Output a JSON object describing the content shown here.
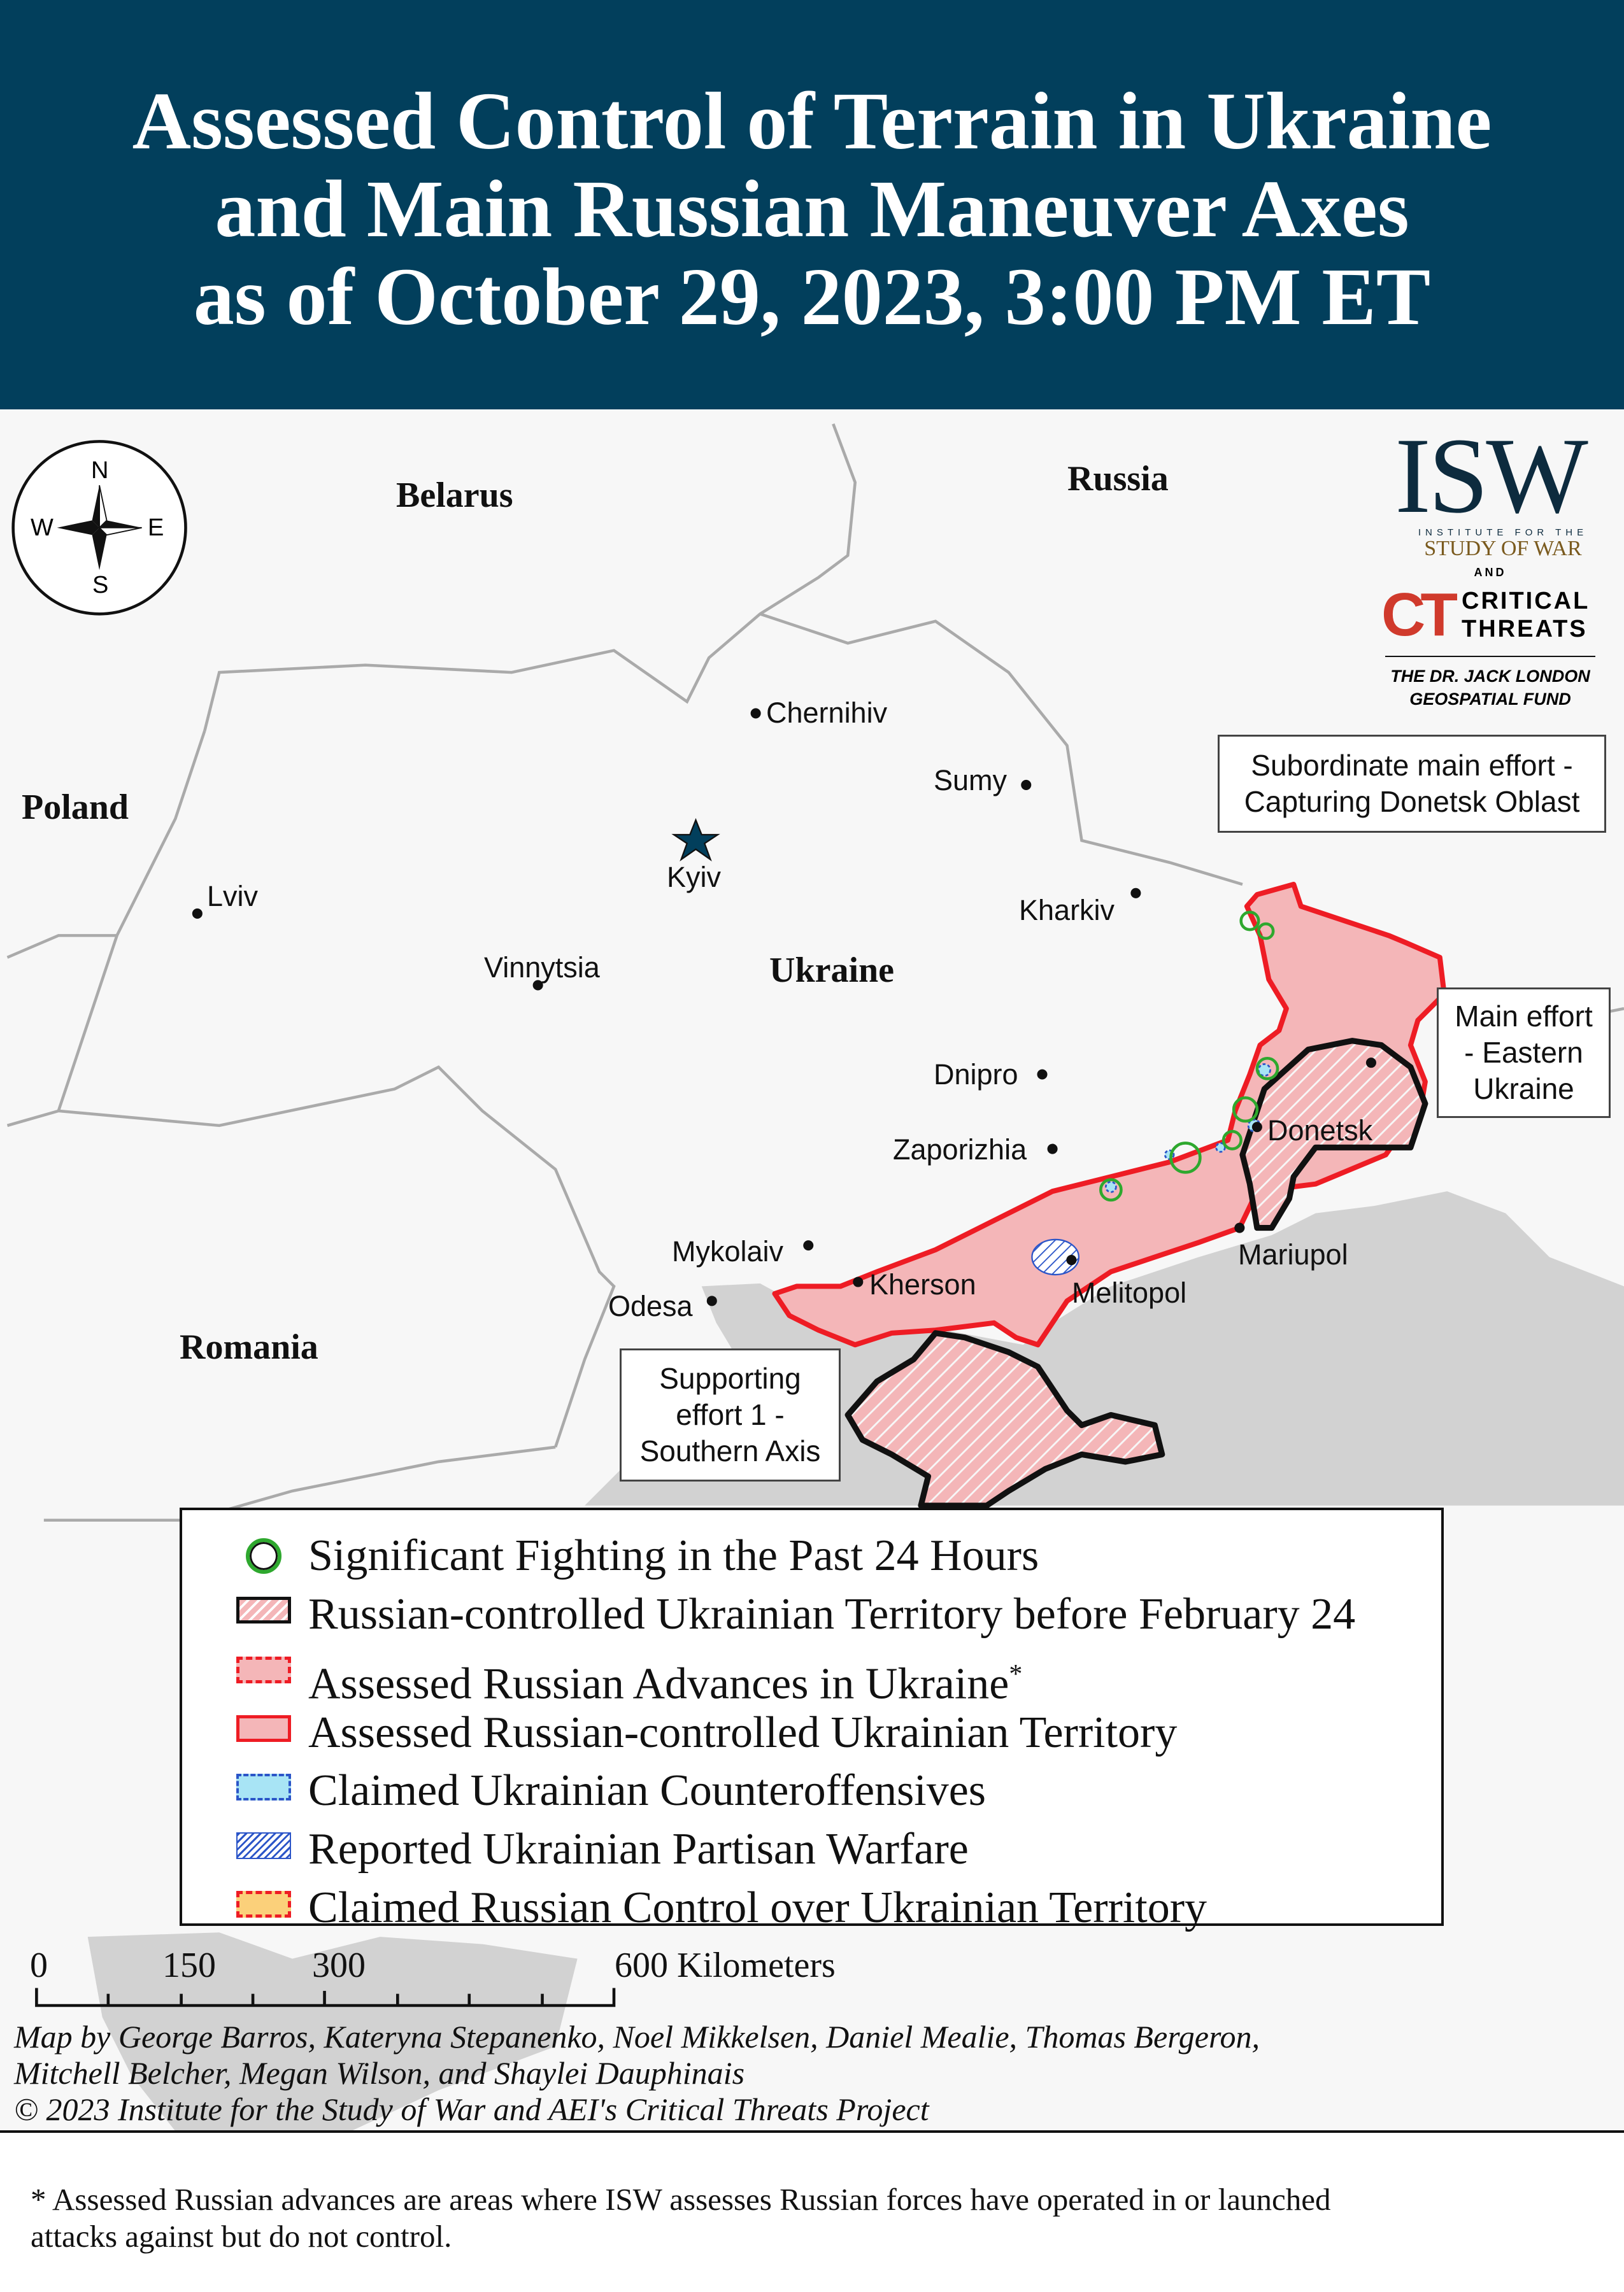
{
  "header": {
    "title_lines": [
      "Assessed Control of Terrain in Ukraine",
      "and Main Russian Maneuver Axes",
      "as of October 29, 2023, 3:00 PM ET"
    ]
  },
  "colors": {
    "header_bg": "#023f5c",
    "russian_control": "#f4b6b8",
    "border_red": "#ee1c24",
    "fighting_green": "#2ea82e",
    "counteroffensive_blue": "#a8e4f5",
    "claimed_orange": "#fbd07a",
    "sea_gray": "#d2d2d2",
    "land": "#f7f7f7"
  },
  "compass": {
    "n": "N",
    "s": "S",
    "e": "E",
    "w": "W"
  },
  "countries": [
    "Belarus",
    "Russia",
    "Poland",
    "Ukraine",
    "Romania"
  ],
  "cities": [
    "Chernihiv",
    "Sumy",
    "Kyiv",
    "Lviv",
    "Kharkiv",
    "Vinnytsia",
    "Dnipro",
    "Zaporizhia",
    "Mykolaiv",
    "Odesa",
    "Kherson",
    "Melitopol",
    "Donetsk",
    "Mariupol"
  ],
  "callouts": {
    "subordinate": [
      "Subordinate main effort -",
      "Capturing Donetsk Oblast"
    ],
    "main": [
      "Main effort",
      "- Eastern",
      "Ukraine"
    ],
    "supporting": [
      "Supporting",
      "effort 1 -",
      "Southern Axis"
    ]
  },
  "logo": {
    "isw": "ISW",
    "isw_sub1": "INSTITUTE FOR THE",
    "isw_sub2": "STUDY OF WAR",
    "and": "AND",
    "ct": "CT",
    "ct1": "CRITICAL",
    "ct2": "THREATS",
    "fund1": "THE DR. JACK LONDON",
    "fund2": "GEOSPATIAL FUND"
  },
  "legend": {
    "items": [
      {
        "label": "Significant Fighting in the Past 24 Hours",
        "icon": "green-ring"
      },
      {
        "label": "Russian-controlled Ukrainian Territory before February 24",
        "icon": "hatched-black-border"
      },
      {
        "label": "Assessed Russian Advances in Ukraine",
        "icon": "pink-dashed-red"
      },
      {
        "label": "Assessed Russian-controlled Ukrainian Territory",
        "icon": "pink-solid-red"
      },
      {
        "label": "Claimed Ukrainian Counteroffensives",
        "icon": "blue-dashed"
      },
      {
        "label": "Reported Ukrainian Partisan Warfare",
        "icon": "blue-hatch"
      },
      {
        "label": "Claimed Russian Control over Ukrainian Territory",
        "icon": "orange-dashed-red"
      }
    ],
    "asterisk": "*"
  },
  "scale": {
    "ticks": [
      "0",
      "150",
      "300",
      "600 Kilometers"
    ]
  },
  "credits": [
    "Map by George Barros, Kateryna Stepanenko, Noel Mikkelsen, Daniel Mealie, Thomas Bergeron,",
    "Mitchell Belcher, Megan Wilson, and Shaylei Dauphinais",
    "© 2023 Institute for the Study of War and AEI's Critical Threats Project"
  ],
  "footnote": [
    "* Assessed Russian advances are areas where ISW assesses Russian forces have operated in or launched",
    "attacks against but do not control."
  ]
}
